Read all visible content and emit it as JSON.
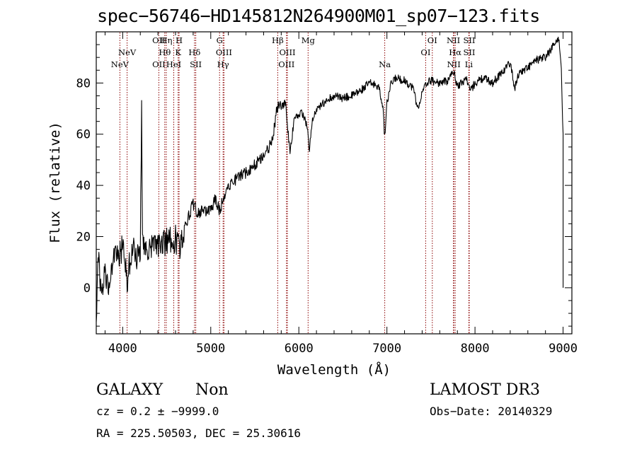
{
  "title": "spec−56746−HD145812N264900M01_sp07−123.fits",
  "info": {
    "object_class": "GALAXY",
    "subclass": "Non",
    "survey": "LAMOST DR3",
    "cz": "cz = 0.2 ± −9999.0",
    "obs_date": "Obs−Date: 20140329",
    "radec": "RA = 225.50503, DEC =  25.30616"
  },
  "chart_data": {
    "type": "line",
    "title": "spec−56746−HD145812N264900M01_sp07−123.fits",
    "xlabel": "Wavelength (Å)",
    "ylabel": "Flux (relative)",
    "xlim": [
      3700,
      9100
    ],
    "ylim": [
      -18,
      100
    ],
    "xticks": [
      4000,
      5000,
      6000,
      7000,
      8000,
      9000
    ],
    "yticks": [
      0,
      20,
      40,
      60,
      80
    ],
    "line_color": "#8b0000",
    "spectral_lines": [
      {
        "label": "NeV",
        "wave": 3968,
        "row": 3
      },
      {
        "label": "NeV",
        "wave": 4050,
        "row": 2
      },
      {
        "label": "OII",
        "wave": 4410,
        "row": 1
      },
      {
        "label": "OII",
        "wave": 4410,
        "row": 3
      },
      {
        "label": "Hη",
        "wave": 4495,
        "row": 1
      },
      {
        "label": "Hθ",
        "wave": 4478,
        "row": 2
      },
      {
        "label": "HeI",
        "wave": 4580,
        "row": 3
      },
      {
        "label": "H",
        "wave": 4640,
        "row": 1
      },
      {
        "label": "K",
        "wave": 4630,
        "row": 2
      },
      {
        "label": "Hδ",
        "wave": 4815,
        "row": 2
      },
      {
        "label": "SII",
        "wave": 4830,
        "row": 3
      },
      {
        "label": "G",
        "wave": 5100,
        "row": 1
      },
      {
        "label": "OIII",
        "wave": 5150,
        "row": 2
      },
      {
        "label": "Hγ",
        "wave": 5140,
        "row": 3
      },
      {
        "label": "Hβ",
        "wave": 5760,
        "row": 1
      },
      {
        "label": "OIII",
        "wave": 5870,
        "row": 2
      },
      {
        "label": "OIII",
        "wave": 5860,
        "row": 3
      },
      {
        "label": "Mg",
        "wave": 6105,
        "row": 1
      },
      {
        "label": "Na",
        "wave": 6975,
        "row": 3
      },
      {
        "label": "OI",
        "wave": 7440,
        "row": 2
      },
      {
        "label": "OI",
        "wave": 7515,
        "row": 1
      },
      {
        "label": "NII",
        "wave": 7755,
        "row": 1
      },
      {
        "label": "Hα",
        "wave": 7775,
        "row": 2
      },
      {
        "label": "NII",
        "wave": 7760,
        "row": 3
      },
      {
        "label": "SII",
        "wave": 7935,
        "row": 1
      },
      {
        "label": "SII",
        "wave": 7935,
        "row": 2
      },
      {
        "label": "Li",
        "wave": 7930,
        "row": 3
      }
    ],
    "spectrum_anchors": [
      [
        3700,
        -15
      ],
      [
        3720,
        15
      ],
      [
        3760,
        -5
      ],
      [
        3800,
        8
      ],
      [
        3850,
        -2
      ],
      [
        3880,
        10
      ],
      [
        3950,
        12
      ],
      [
        4000,
        16
      ],
      [
        4050,
        3
      ],
      [
        4100,
        15
      ],
      [
        4150,
        13
      ],
      [
        4190,
        12
      ],
      [
        4200,
        16
      ],
      [
        4215,
        68
      ],
      [
        4225,
        18
      ],
      [
        4300,
        15
      ],
      [
        4400,
        17
      ],
      [
        4500,
        18
      ],
      [
        4600,
        19
      ],
      [
        4650,
        15
      ],
      [
        4700,
        24
      ],
      [
        4750,
        28
      ],
      [
        4800,
        33
      ],
      [
        4850,
        29
      ],
      [
        4900,
        30
      ],
      [
        5000,
        30
      ],
      [
        5050,
        35
      ],
      [
        5100,
        30
      ],
      [
        5150,
        36
      ],
      [
        5200,
        40
      ],
      [
        5300,
        43
      ],
      [
        5400,
        45
      ],
      [
        5500,
        48
      ],
      [
        5600,
        52
      ],
      [
        5700,
        57
      ],
      [
        5750,
        70
      ],
      [
        5800,
        71
      ],
      [
        5850,
        72
      ],
      [
        5880,
        60
      ],
      [
        5900,
        52
      ],
      [
        5950,
        67
      ],
      [
        6000,
        68
      ],
      [
        6050,
        68
      ],
      [
        6100,
        62
      ],
      [
        6120,
        53
      ],
      [
        6150,
        65
      ],
      [
        6200,
        69
      ],
      [
        6300,
        73
      ],
      [
        6400,
        75
      ],
      [
        6500,
        74
      ],
      [
        6600,
        75
      ],
      [
        6700,
        77
      ],
      [
        6800,
        80
      ],
      [
        6900,
        79
      ],
      [
        6950,
        72
      ],
      [
        6975,
        59
      ],
      [
        7000,
        72
      ],
      [
        7050,
        80
      ],
      [
        7100,
        82
      ],
      [
        7200,
        81
      ],
      [
        7300,
        78
      ],
      [
        7350,
        70
      ],
      [
        7400,
        76
      ],
      [
        7450,
        80
      ],
      [
        7500,
        81
      ],
      [
        7600,
        80
      ],
      [
        7700,
        81
      ],
      [
        7750,
        85
      ],
      [
        7800,
        79
      ],
      [
        7850,
        80
      ],
      [
        7900,
        82
      ],
      [
        7950,
        77
      ],
      [
        8000,
        80
      ],
      [
        8100,
        82
      ],
      [
        8200,
        80
      ],
      [
        8300,
        84
      ],
      [
        8400,
        88
      ],
      [
        8450,
        78
      ],
      [
        8500,
        84
      ],
      [
        8600,
        86
      ],
      [
        8700,
        89
      ],
      [
        8800,
        90
      ],
      [
        8900,
        95
      ],
      [
        8950,
        98
      ],
      [
        8980,
        85
      ],
      [
        9000,
        60
      ],
      [
        9000,
        0
      ]
    ]
  }
}
